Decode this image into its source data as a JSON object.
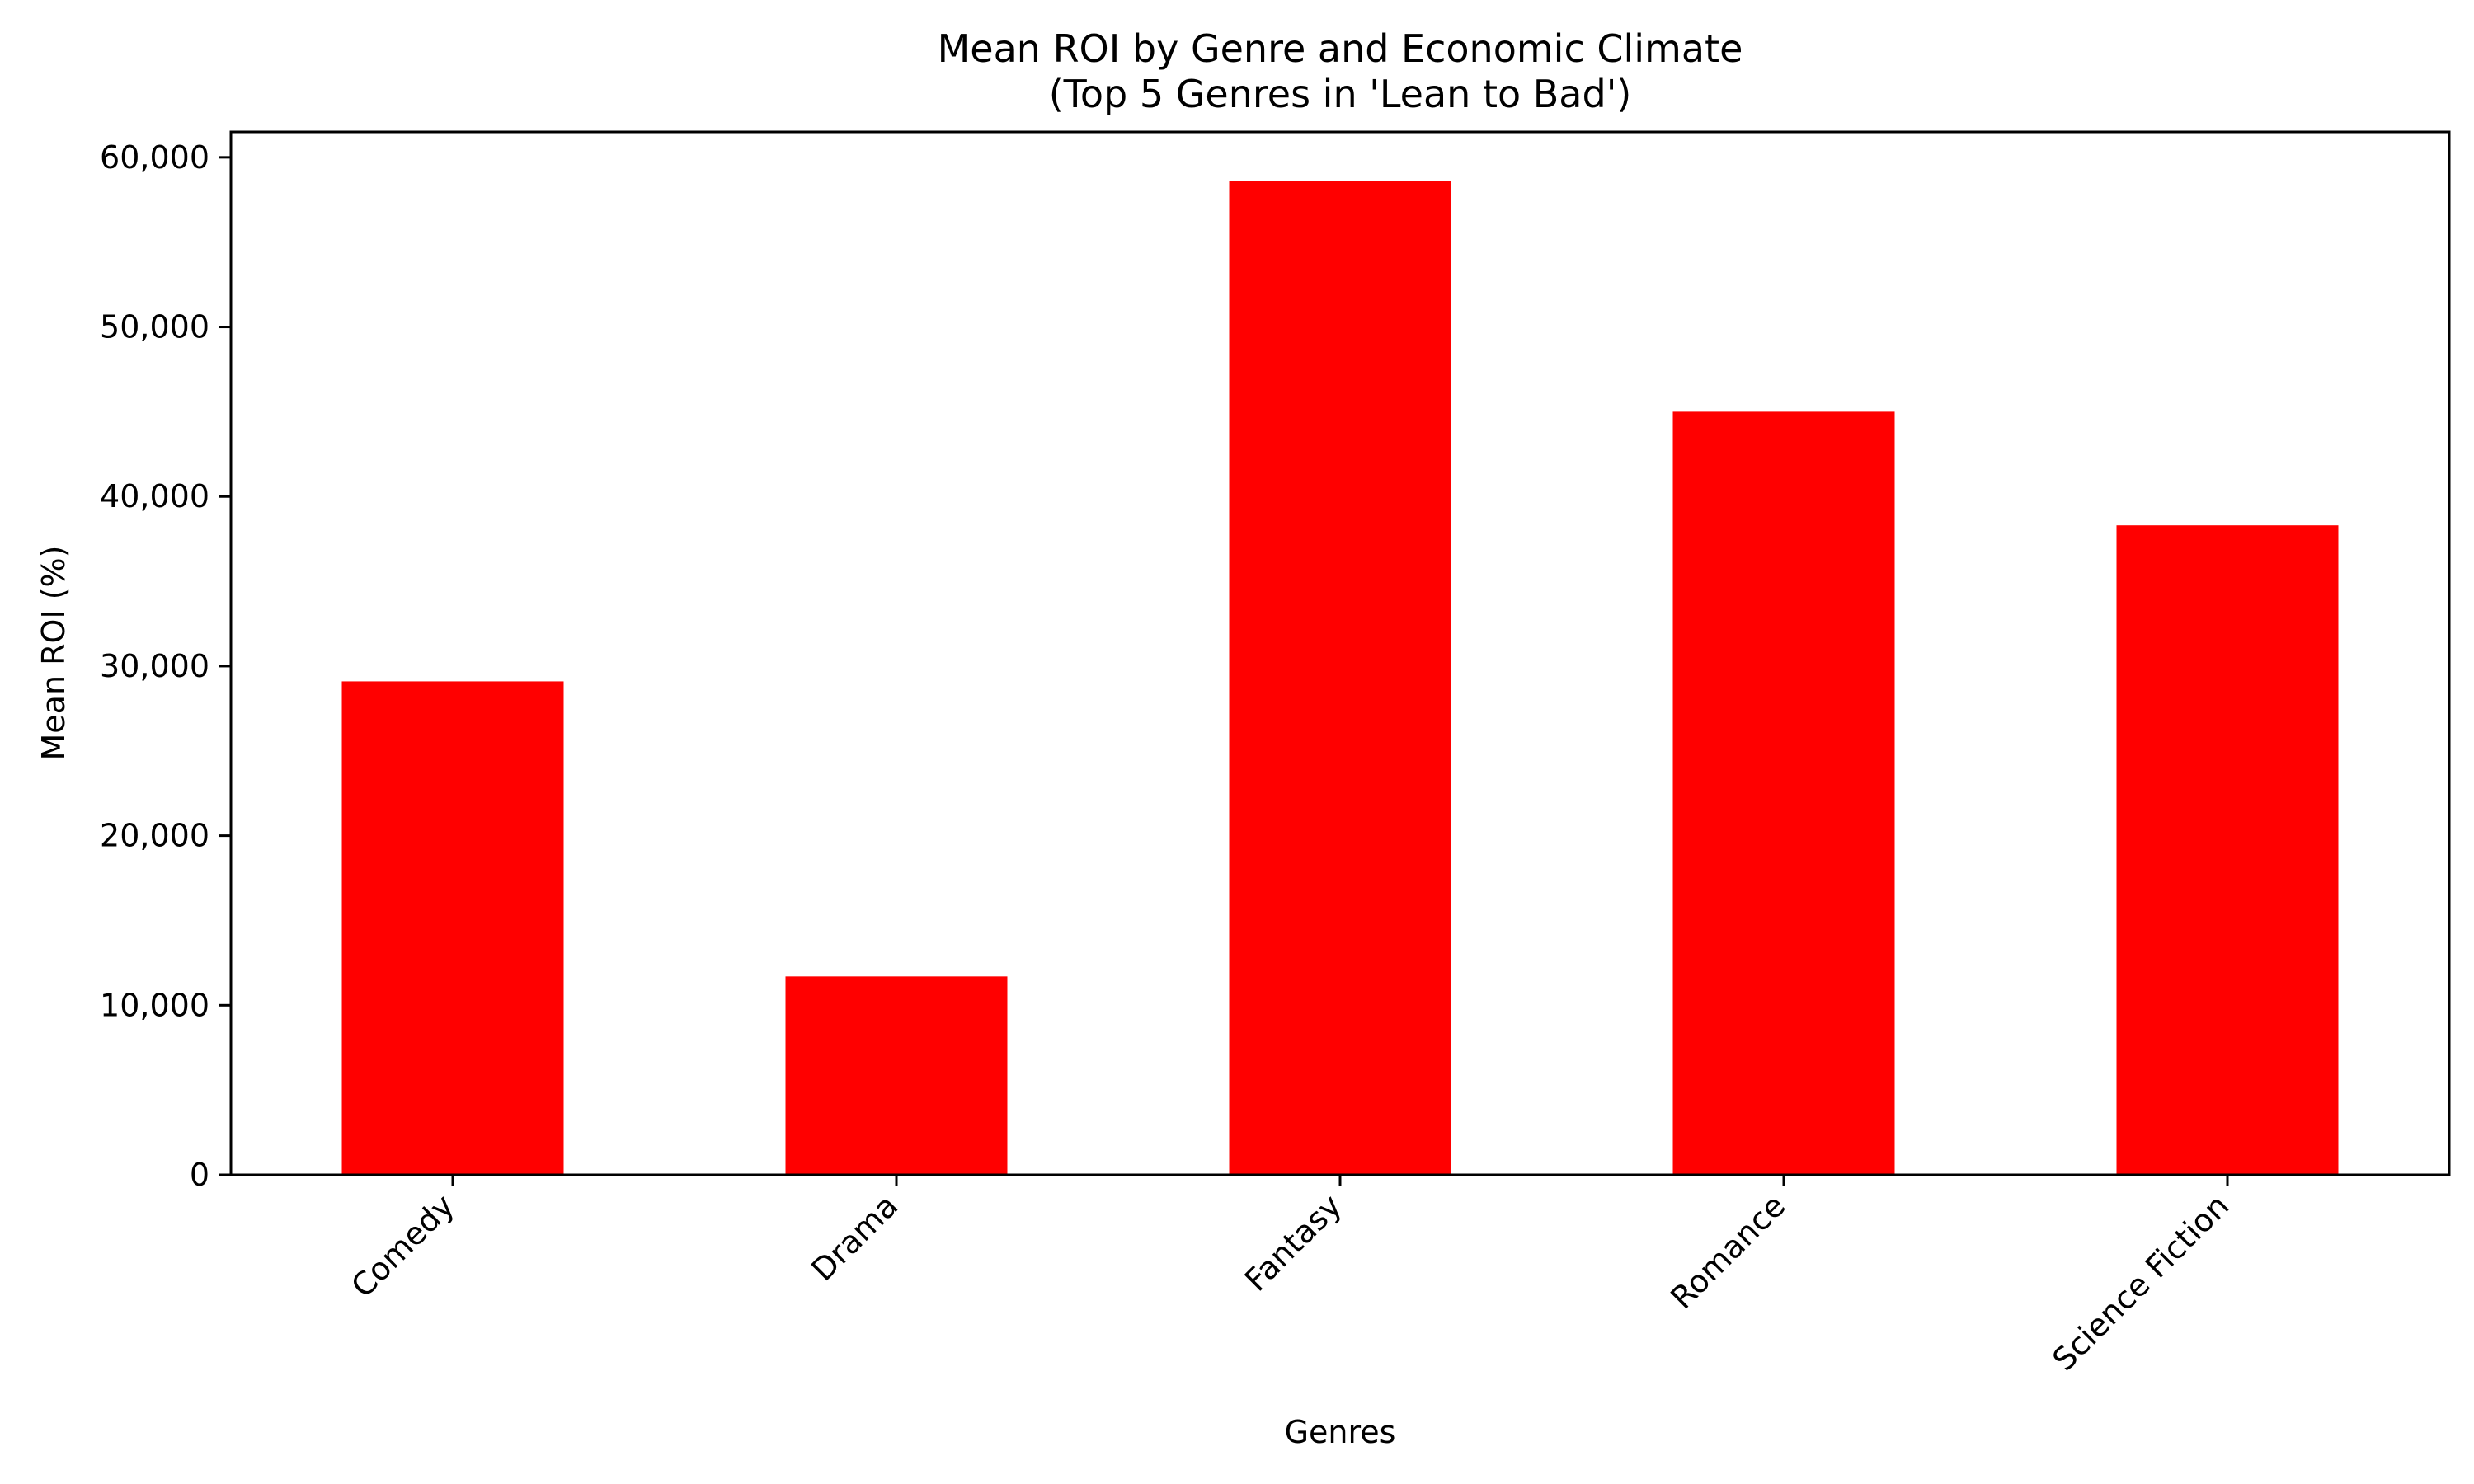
{
  "chart_data": {
    "type": "bar",
    "title_line1": "Mean ROI by Genre and Economic Climate",
    "title_line2": "(Top 5 Genres in 'Lean to Bad')",
    "xlabel": "Genres",
    "ylabel": "Mean ROI (%)",
    "categories": [
      "Comedy",
      "Drama",
      "Fantasy",
      "Romance",
      "Science Fiction"
    ],
    "values": [
      29100,
      11700,
      58600,
      45000,
      38300
    ],
    "ylim": [
      0,
      61500
    ],
    "yticks": [
      0,
      10000,
      20000,
      30000,
      40000,
      50000,
      60000
    ],
    "ytick_labels": [
      "0",
      "10,000",
      "20,000",
      "30,000",
      "40,000",
      "50,000",
      "60,000"
    ],
    "bar_color": "#ff0000",
    "grid": false,
    "legend": "none"
  }
}
